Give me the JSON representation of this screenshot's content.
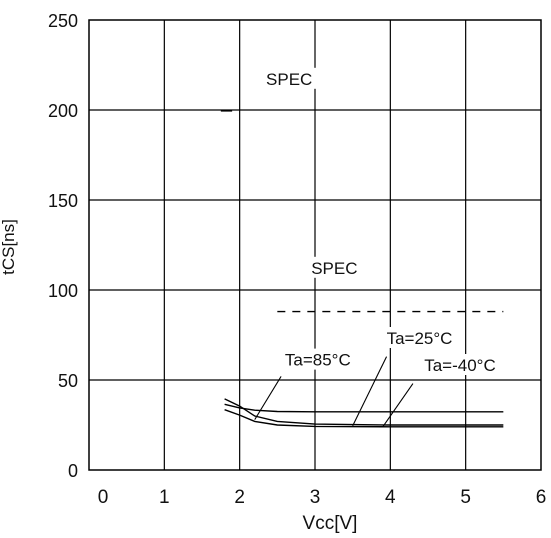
{
  "chart_data": {
    "type": "line",
    "xlabel": "Vcc[V]",
    "ylabel": "tCS[ns]",
    "xlim": [
      0,
      6
    ],
    "ylim": [
      0,
      250
    ],
    "x_ticks": [
      "0",
      "1",
      "2",
      "3",
      "4",
      "5",
      "6"
    ],
    "y_ticks": [
      "0",
      "50",
      "100",
      "150",
      "200",
      "250"
    ],
    "grid": true,
    "series": [
      {
        "name": "Ta=85°C",
        "x": [
          1.8,
          2.0,
          2.2,
          2.5,
          3.0,
          4.0,
          5.5
        ],
        "y": [
          36.5,
          34.5,
          33.2,
          32.5,
          32.3,
          32.3,
          32.3
        ]
      },
      {
        "name": "Ta=25°C",
        "x": [
          1.8,
          2.0,
          2.2,
          2.5,
          3.0,
          4.0,
          5.5
        ],
        "y": [
          39.5,
          35.5,
          30.0,
          27.0,
          25.5,
          25.0,
          25.0
        ]
      },
      {
        "name": "Ta=-40°C",
        "x": [
          1.8,
          2.0,
          2.2,
          2.5,
          3.0,
          4.0,
          5.5
        ],
        "y": [
          33.5,
          30.5,
          27.0,
          25.0,
          24.2,
          24.0,
          24.0
        ]
      },
      {
        "name": "SPEC",
        "style": "dashed",
        "x": [
          2.5,
          5.5
        ],
        "y": [
          88,
          88
        ]
      },
      {
        "name": "SPEC",
        "x": [
          1.75,
          1.9
        ],
        "y": [
          199.5,
          199.5
        ]
      }
    ],
    "annotations": [
      {
        "text": "SPEC",
        "x": 2.35,
        "y": 214
      },
      {
        "text": "SPEC",
        "x": 2.95,
        "y": 109
      },
      {
        "text": "Ta=85°C",
        "x": 2.6,
        "y": 58
      },
      {
        "text": "Ta=25°C",
        "x": 3.95,
        "y": 70
      },
      {
        "text": "Ta=-40°C",
        "x": 4.45,
        "y": 55
      }
    ],
    "leaders": [
      {
        "label": "Ta=85°C",
        "from": [
          2.55,
          52
        ],
        "to": [
          2.2,
          28
        ]
      },
      {
        "label": "Ta=25°C",
        "from": [
          3.95,
          63
        ],
        "to": [
          3.5,
          24.5
        ]
      },
      {
        "label": "Ta=-40°C",
        "from": [
          4.3,
          48
        ],
        "to": [
          3.9,
          24
        ]
      }
    ]
  }
}
